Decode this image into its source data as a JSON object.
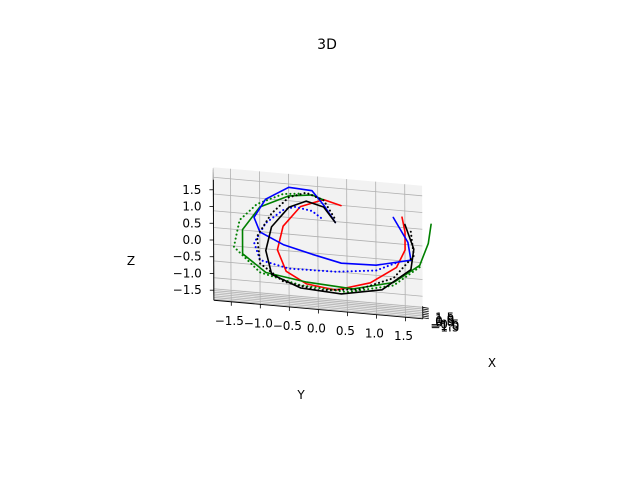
{
  "chart_data": {
    "type": "line",
    "projection": "3d",
    "title": "3D",
    "xlabel": "X",
    "ylabel": "Y",
    "zlabel": "Z",
    "xlim": [
      -1.8,
      1.8
    ],
    "ylim": [
      -1.8,
      1.8
    ],
    "zlim": [
      -1.8,
      1.8
    ],
    "grid": true,
    "x_ticks": [
      "−1.5",
      "−1.0",
      "−0.5",
      "0.0",
      "0.5",
      "1.0",
      "1.5"
    ],
    "y_ticks": [
      "−1.5",
      "−1.0",
      "−0.5",
      "0.0",
      "0.5",
      "1.0",
      "1.5"
    ],
    "z_ticks": [
      "−1.5",
      "−1.0",
      "−0.5",
      "0.0",
      "0.5",
      "1.0",
      "1.5"
    ],
    "series": [
      {
        "color": "#ff0000",
        "style": "solid",
        "points": [
          [
            0.9,
            1.45,
            0.9
          ],
          [
            0.6,
            1.5,
            0.5
          ],
          [
            0.2,
            1.5,
            0.0
          ],
          [
            -0.2,
            1.35,
            -0.5
          ],
          [
            -0.5,
            0.9,
            -1.0
          ],
          [
            -0.6,
            0.3,
            -1.3
          ],
          [
            -0.5,
            -0.2,
            -1.2
          ],
          [
            -0.3,
            -0.55,
            -0.9
          ],
          [
            -0.1,
            -0.7,
            -0.3
          ],
          [
            0.1,
            -0.6,
            0.4
          ],
          [
            0.4,
            -0.3,
            1.0
          ],
          [
            0.6,
            0.1,
            1.25
          ],
          [
            0.75,
            0.4,
            1.1
          ]
        ]
      },
      {
        "color": "#008000",
        "style": "solid",
        "points": [
          [
            -0.4,
            1.95,
            0.9
          ],
          [
            -0.2,
            1.9,
            0.3
          ],
          [
            0.0,
            1.75,
            -0.4
          ],
          [
            0.2,
            1.3,
            -1.0
          ],
          [
            0.2,
            0.6,
            -1.3
          ],
          [
            0.0,
            -0.2,
            -1.2
          ],
          [
            -0.2,
            -0.9,
            -1.0
          ],
          [
            -0.2,
            -1.3,
            -0.5
          ],
          [
            0.0,
            -1.3,
            0.2
          ],
          [
            0.2,
            -1.0,
            0.9
          ],
          [
            0.3,
            -0.5,
            1.3
          ],
          [
            0.2,
            -0.1,
            1.4
          ],
          [
            0.0,
            0.1,
            1.3
          ]
        ]
      },
      {
        "color": "#008000",
        "style": "dotted",
        "points": [
          [
            0.45,
            1.75,
            -0.5
          ],
          [
            0.3,
            1.3,
            -1.1
          ],
          [
            0.1,
            0.5,
            -1.4
          ],
          [
            -0.1,
            -0.3,
            -1.3
          ],
          [
            -0.3,
            -1.0,
            -1.0
          ],
          [
            -0.35,
            -1.45,
            -0.3
          ],
          [
            -0.2,
            -1.35,
            0.5
          ],
          [
            0.0,
            -1.05,
            1.0
          ],
          [
            0.2,
            -0.6,
            1.35
          ],
          [
            0.3,
            -0.3,
            1.4
          ]
        ]
      },
      {
        "color": "#0000ff",
        "style": "solid",
        "points": [
          [
            0.6,
            1.3,
            0.9
          ],
          [
            0.55,
            1.55,
            0.2
          ],
          [
            0.3,
            1.6,
            -0.3
          ],
          [
            -0.1,
            1.0,
            -0.5
          ],
          [
            -0.4,
            0.4,
            -0.5
          ],
          [
            -0.5,
            -0.1,
            -0.3
          ],
          [
            -0.4,
            -0.6,
            -0.1
          ],
          [
            -0.2,
            -1.0,
            0.2
          ],
          [
            0.0,
            -1.1,
            0.6
          ],
          [
            0.2,
            -0.9,
            1.15
          ],
          [
            0.35,
            -0.5,
            1.55
          ],
          [
            0.45,
            -0.1,
            1.5
          ],
          [
            0.5,
            0.1,
            1.1
          ],
          [
            0.55,
            0.3,
            0.6
          ]
        ]
      },
      {
        "color": "#0000ff",
        "style": "dotted",
        "points": [
          [
            0.55,
            1.4,
            -0.4
          ],
          [
            0.3,
            1.0,
            -0.7
          ],
          [
            -0.1,
            0.3,
            -0.8
          ],
          [
            -0.4,
            -0.5,
            -0.8
          ],
          [
            -0.6,
            -1.0,
            -0.6
          ],
          [
            -0.6,
            -1.1,
            -0.1
          ],
          [
            -0.4,
            -0.9,
            0.5
          ],
          [
            -0.1,
            -0.6,
            0.9
          ],
          [
            0.2,
            -0.4,
            1.0
          ],
          [
            0.4,
            -0.1,
            0.9
          ],
          [
            0.5,
            0.1,
            0.65
          ]
        ]
      },
      {
        "color": "#000000",
        "style": "solid",
        "points": [
          [
            0.8,
            1.5,
            0.7
          ],
          [
            0.7,
            1.65,
            0.0
          ],
          [
            0.5,
            1.6,
            -0.6
          ],
          [
            0.2,
            1.1,
            -1.25
          ],
          [
            -0.1,
            0.4,
            -1.45
          ],
          [
            -0.4,
            -0.3,
            -1.35
          ],
          [
            -0.6,
            -0.8,
            -1.0
          ],
          [
            -0.6,
            -0.9,
            -0.3
          ],
          [
            -0.4,
            -0.8,
            0.4
          ],
          [
            -0.1,
            -0.5,
            1.0
          ],
          [
            0.2,
            -0.2,
            1.2
          ],
          [
            0.4,
            0.1,
            1.05
          ],
          [
            0.55,
            0.3,
            0.6
          ]
        ]
      },
      {
        "color": "#000000",
        "style": "dotted",
        "points": [
          [
            0.8,
            1.6,
            0.5
          ],
          [
            0.7,
            1.65,
            -0.2
          ],
          [
            0.5,
            1.3,
            -0.9
          ],
          [
            0.2,
            0.7,
            -1.3
          ],
          [
            -0.1,
            0.0,
            -1.4
          ],
          [
            -0.4,
            -0.6,
            -1.2
          ],
          [
            -0.6,
            -1.0,
            -0.7
          ],
          [
            -0.6,
            -1.05,
            0.1
          ],
          [
            -0.4,
            -0.8,
            0.8
          ],
          [
            -0.1,
            -0.5,
            1.3
          ],
          [
            0.2,
            -0.2,
            1.45
          ],
          [
            0.4,
            0.1,
            1.25
          ],
          [
            0.5,
            0.3,
            0.7
          ]
        ]
      }
    ]
  }
}
